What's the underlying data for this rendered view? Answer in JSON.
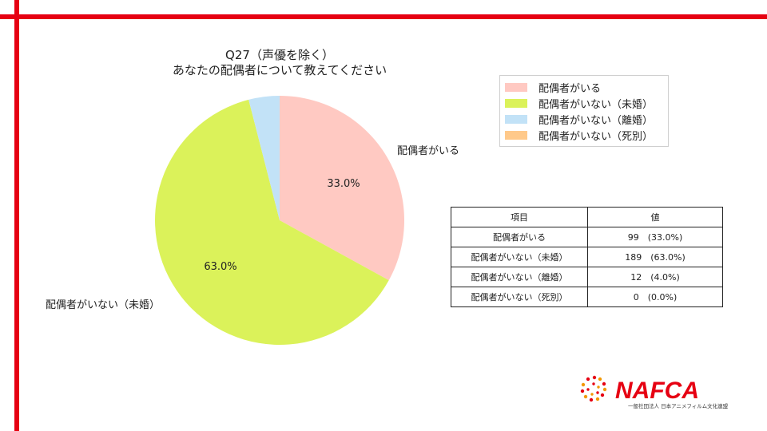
{
  "title": {
    "line1": "Q27（声優を除く）",
    "line2": "あなたの配偶者について教えてください"
  },
  "chart_data": {
    "type": "pie",
    "categories": [
      "配偶者がいる",
      "配偶者がいない（未婚）",
      "配偶者がいない（離婚）",
      "配偶者がいない（死別）"
    ],
    "values": [
      99,
      189,
      12,
      0
    ],
    "percent_labels": [
      "33.0%",
      "63.0%",
      "",
      ""
    ],
    "outside_labels": [
      "配偶者がいる",
      "配偶者がいない（未婚）",
      "",
      ""
    ],
    "colors": [
      "#ffc9c2",
      "#dbf25a",
      "#c2e2f7",
      "#ffc98a"
    ],
    "start": "12 o'clock, clockwise",
    "legend_position": "top-right"
  },
  "table": {
    "headers": [
      "項目",
      "値"
    ],
    "rows": [
      [
        "配偶者がいる",
        "99　(33.0%)"
      ],
      [
        "配偶者がいない（未婚）",
        "189　(63.0%)"
      ],
      [
        "配偶者がいない（離婚）",
        "12　(4.0%)"
      ],
      [
        "配偶者がいない（死別）",
        "0　(0.0%)"
      ]
    ]
  },
  "logo": {
    "wordmark": "NAFCA",
    "subtitle": "一般社団法人 日本アニメフィルム文化連盟",
    "color": "#e60012"
  }
}
